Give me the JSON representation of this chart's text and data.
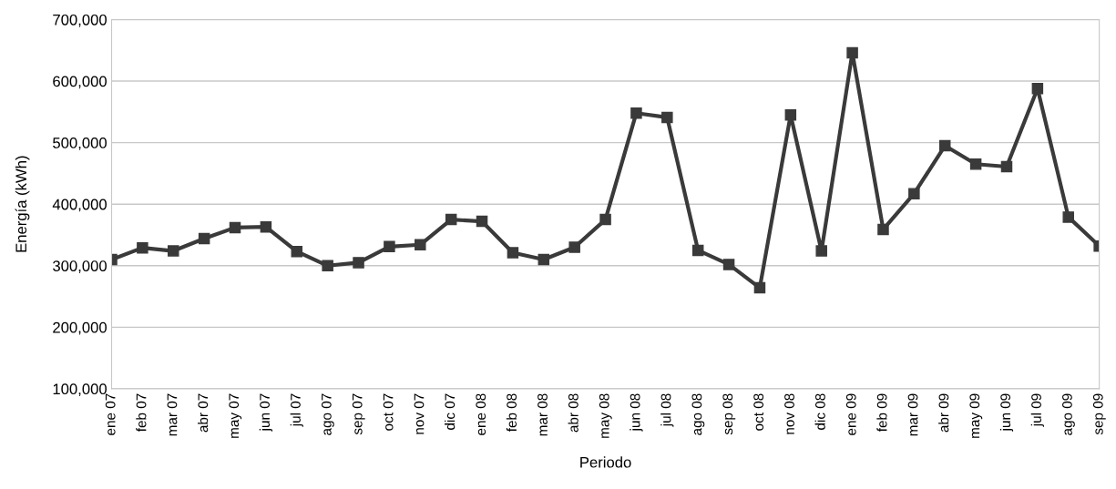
{
  "chart_data": {
    "type": "line",
    "xlabel": "Periodo",
    "ylabel": "Energía (kWh)",
    "categories": [
      "ene 07",
      "feb 07",
      "mar 07",
      "abr 07",
      "may 07",
      "jun 07",
      "jul 07",
      "ago 07",
      "sep 07",
      "oct 07",
      "nov 07",
      "dic 07",
      "ene 08",
      "feb 08",
      "mar 08",
      "abr 08",
      "may 08",
      "jun 08",
      "jul 08",
      "ago 08",
      "sep 08",
      "oct 08",
      "nov 08",
      "dic 08",
      "ene 09",
      "feb 09",
      "mar 09",
      "abr 09",
      "may 09",
      "jun 09",
      "jul 09",
      "ago 09",
      "sep 09"
    ],
    "series": [
      {
        "color": "#3a3a3a",
        "values": [
          310000,
          329000,
          324000,
          344000,
          362000,
          363000,
          323000,
          300000,
          305000,
          331000,
          334000,
          375000,
          372000,
          321000,
          310000,
          330000,
          375000,
          548000,
          541000,
          325000,
          302000,
          264000,
          545000,
          324000,
          646000,
          359000,
          417000,
          495000,
          465000,
          461000,
          588000,
          379000,
          332000
        ]
      }
    ],
    "ylim": [
      100000,
      700000
    ],
    "yticks": [
      {
        "value": 100000,
        "label": "100,000"
      },
      {
        "value": 200000,
        "label": "200,000"
      },
      {
        "value": 300000,
        "label": "300,000"
      },
      {
        "value": 400000,
        "label": "400,000"
      },
      {
        "value": 500000,
        "label": "500,000"
      },
      {
        "value": 600000,
        "label": "600,000"
      },
      {
        "value": 700000,
        "label": "700,000"
      }
    ],
    "grid": "y",
    "legend": false,
    "marker": "square",
    "line_style": "solid"
  }
}
